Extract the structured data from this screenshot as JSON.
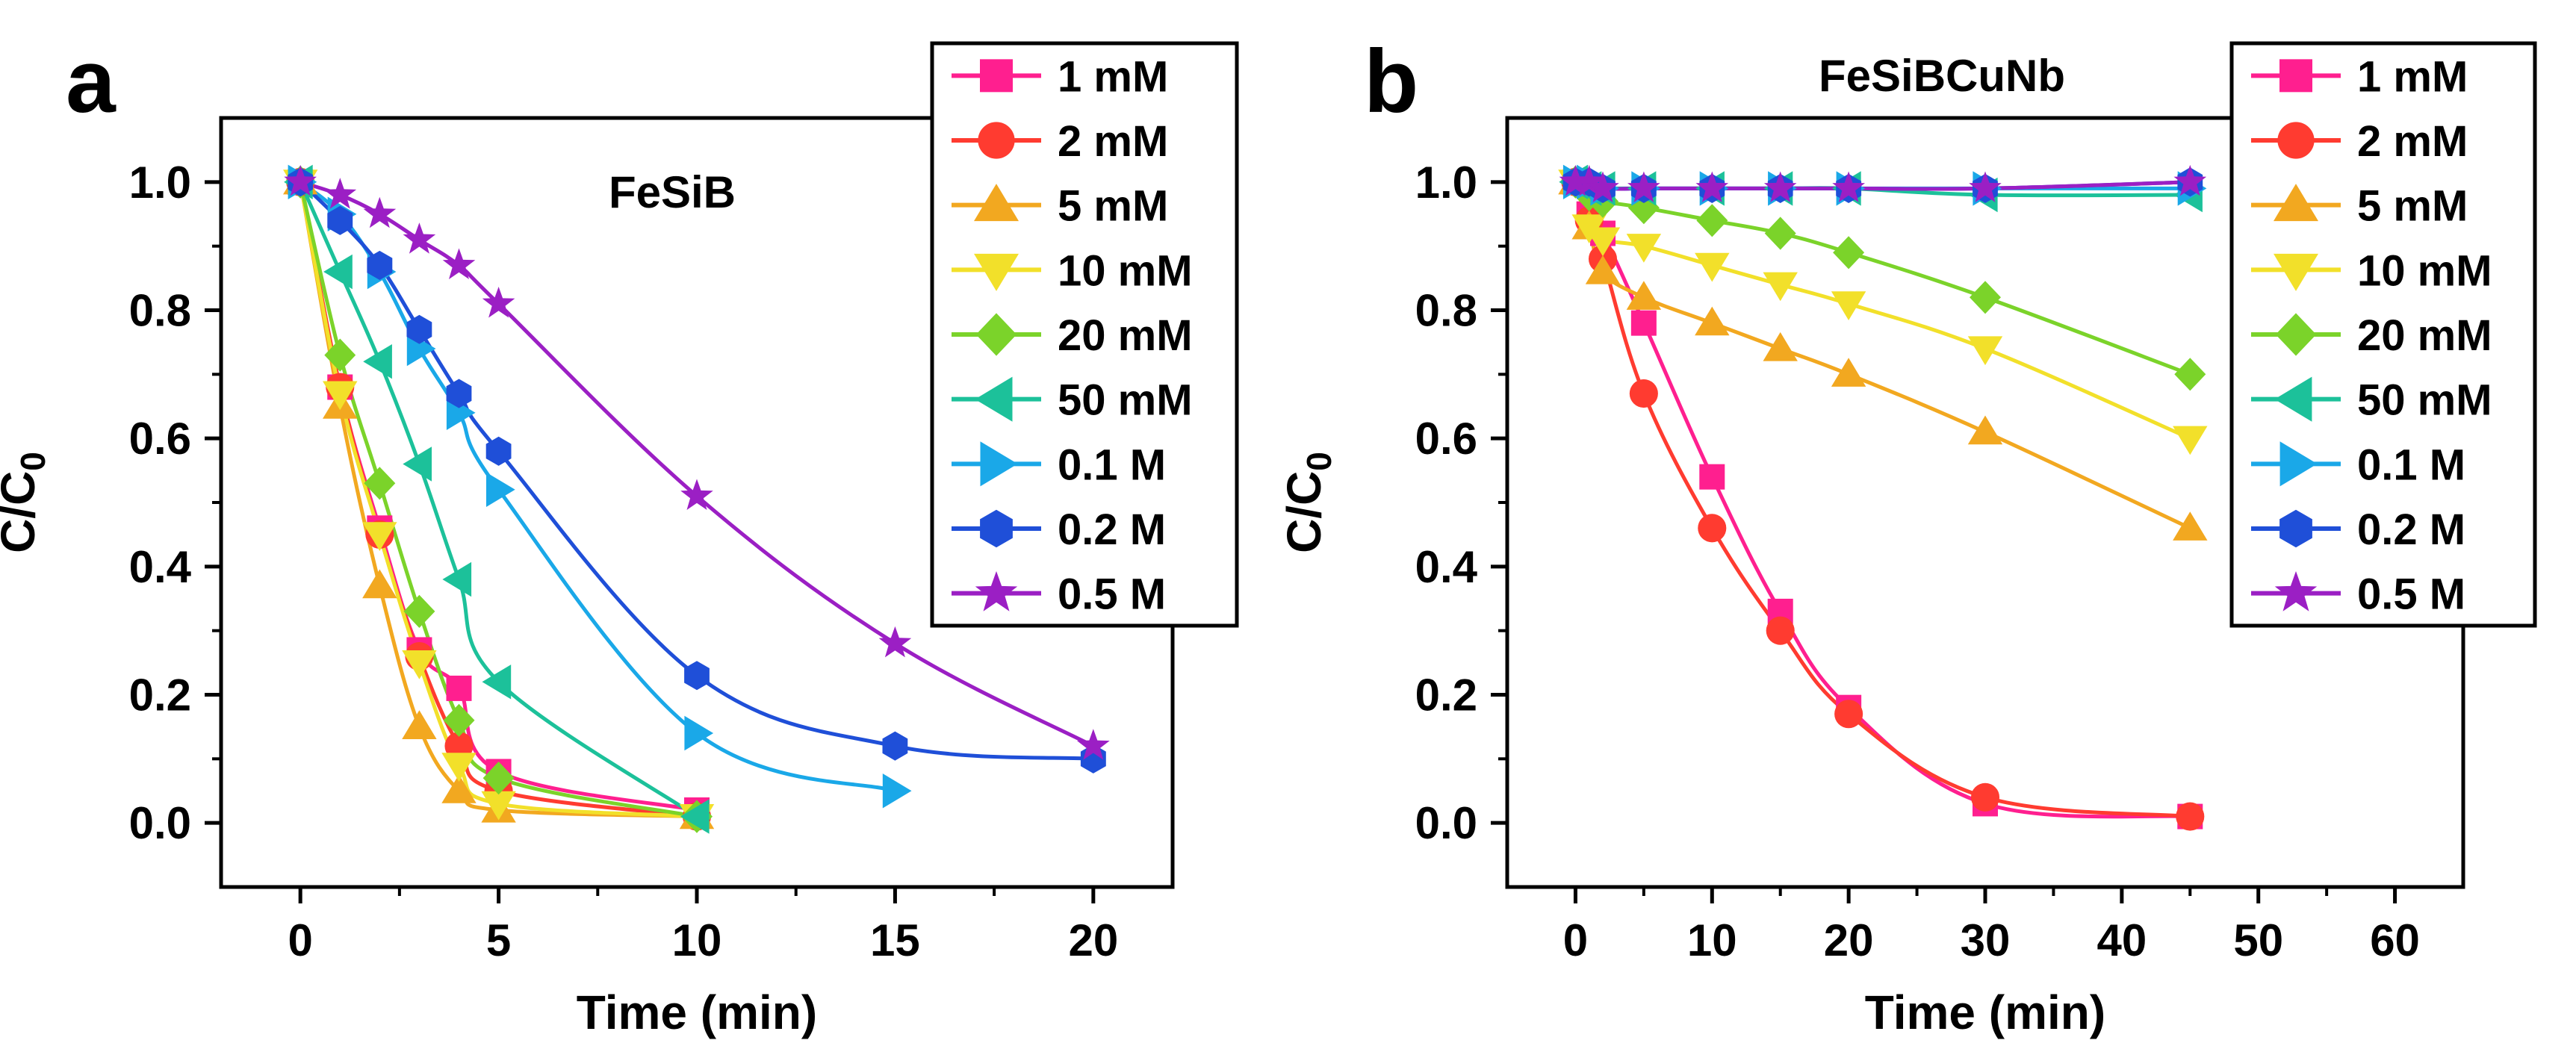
{
  "chart_data": [
    {
      "panel_label": "a",
      "title": "FeSiB",
      "type": "line",
      "xlabel": "Time (min)",
      "ylabel": "C/C",
      "ylabel_sub": "0",
      "xlim": [
        -2,
        22
      ],
      "ylim": [
        -0.1,
        1.1
      ],
      "xticks": [
        0,
        5,
        10,
        15,
        20
      ],
      "yticks": [
        0.0,
        0.2,
        0.4,
        0.6,
        0.8,
        1.0
      ],
      "xtick_labels": [
        "0",
        "5",
        "10",
        "15",
        "20"
      ],
      "ytick_labels": [
        "0.0",
        "0.2",
        "0.4",
        "0.6",
        "0.8",
        "1.0"
      ],
      "legend_position": "top-right",
      "series": [
        {
          "name": "1 mM",
          "color": "#ff1f8f",
          "marker": "square",
          "x": [
            0,
            1,
            2,
            3,
            4,
            5,
            10
          ],
          "y": [
            1.0,
            0.68,
            0.46,
            0.27,
            0.21,
            0.08,
            0.02
          ]
        },
        {
          "name": "2 mM",
          "color": "#ff3b30",
          "marker": "circle",
          "x": [
            0,
            1,
            2,
            3,
            4,
            5,
            10
          ],
          "y": [
            1.0,
            0.68,
            0.45,
            0.26,
            0.12,
            0.05,
            0.01
          ]
        },
        {
          "name": "5 mM",
          "color": "#f2a820",
          "marker": "triangle-up",
          "x": [
            0,
            1,
            2,
            3,
            4,
            5,
            10
          ],
          "y": [
            1.0,
            0.65,
            0.37,
            0.15,
            0.05,
            0.02,
            0.01
          ]
        },
        {
          "name": "10 mM",
          "color": "#f2e02a",
          "marker": "triangle-down",
          "x": [
            0,
            1,
            2,
            3,
            4,
            5,
            10
          ],
          "y": [
            1.0,
            0.67,
            0.45,
            0.25,
            0.09,
            0.03,
            0.01
          ]
        },
        {
          "name": "20 mM",
          "color": "#7bd32a",
          "marker": "diamond",
          "x": [
            0,
            1,
            2,
            3,
            4,
            5,
            10
          ],
          "y": [
            1.0,
            0.73,
            0.53,
            0.33,
            0.16,
            0.07,
            0.01
          ]
        },
        {
          "name": "50 mM",
          "color": "#1cc19a",
          "marker": "triangle-left",
          "x": [
            0,
            1,
            2,
            3,
            4,
            5,
            10
          ],
          "y": [
            1.0,
            0.86,
            0.72,
            0.56,
            0.38,
            0.22,
            0.01
          ]
        },
        {
          "name": "0.1 M",
          "color": "#1aa8e8",
          "marker": "triangle-right",
          "x": [
            0,
            1,
            2,
            3,
            4,
            5,
            10,
            15
          ],
          "y": [
            1.0,
            0.95,
            0.86,
            0.74,
            0.64,
            0.52,
            0.14,
            0.05
          ]
        },
        {
          "name": "0.2 M",
          "color": "#1f4fd8",
          "marker": "hexagon",
          "x": [
            0,
            1,
            2,
            3,
            4,
            5,
            10,
            15,
            20
          ],
          "y": [
            1.0,
            0.94,
            0.87,
            0.77,
            0.67,
            0.58,
            0.23,
            0.12,
            0.1
          ]
        },
        {
          "name": "0.5 M",
          "color": "#9b1fc4",
          "marker": "star",
          "x": [
            0,
            1,
            2,
            3,
            4,
            5,
            10,
            15,
            20
          ],
          "y": [
            1.0,
            0.98,
            0.95,
            0.91,
            0.87,
            0.81,
            0.51,
            0.28,
            0.12
          ]
        }
      ]
    },
    {
      "panel_label": "b",
      "title": "FeSiBCuNb",
      "type": "line",
      "xlabel": "Time (min)",
      "ylabel": "C/C",
      "ylabel_sub": "0",
      "xlim": [
        -5,
        65
      ],
      "ylim": [
        -0.1,
        1.1
      ],
      "xticks": [
        0,
        10,
        20,
        30,
        40,
        50,
        60
      ],
      "yticks": [
        0.0,
        0.2,
        0.4,
        0.6,
        0.8,
        1.0
      ],
      "xtick_labels": [
        "0",
        "10",
        "20",
        "30",
        "40",
        "50",
        "60"
      ],
      "ytick_labels": [
        "0.0",
        "0.2",
        "0.4",
        "0.6",
        "0.8",
        "1.0"
      ],
      "legend_position": "top-right",
      "series": [
        {
          "name": "1 mM",
          "color": "#ff1f8f",
          "marker": "square",
          "x": [
            0,
            1,
            2,
            5,
            10,
            15,
            20,
            30,
            45
          ],
          "y": [
            1.0,
            0.95,
            0.92,
            0.78,
            0.54,
            0.33,
            0.18,
            0.03,
            0.01
          ]
        },
        {
          "name": "2 mM",
          "color": "#ff3b30",
          "marker": "circle",
          "x": [
            0,
            1,
            2,
            5,
            10,
            15,
            20,
            30,
            45
          ],
          "y": [
            1.0,
            0.94,
            0.88,
            0.67,
            0.46,
            0.3,
            0.17,
            0.04,
            0.01
          ]
        },
        {
          "name": "5 mM",
          "color": "#f2a820",
          "marker": "triangle-up",
          "x": [
            0,
            1,
            2,
            5,
            10,
            15,
            20,
            30,
            45
          ],
          "y": [
            1.0,
            0.93,
            0.86,
            0.82,
            0.78,
            0.74,
            0.7,
            0.61,
            0.46
          ]
        },
        {
          "name": "10 mM",
          "color": "#f2e02a",
          "marker": "triangle-down",
          "x": [
            0,
            1,
            2,
            5,
            10,
            15,
            20,
            30,
            45
          ],
          "y": [
            1.0,
            0.93,
            0.91,
            0.9,
            0.87,
            0.84,
            0.81,
            0.74,
            0.6
          ]
        },
        {
          "name": "20 mM",
          "color": "#7bd32a",
          "marker": "diamond",
          "x": [
            0,
            1,
            2,
            5,
            10,
            15,
            20,
            30,
            45
          ],
          "y": [
            1.0,
            0.98,
            0.97,
            0.96,
            0.94,
            0.92,
            0.89,
            0.82,
            0.7
          ]
        },
        {
          "name": "50 mM",
          "color": "#1cc19a",
          "marker": "triangle-left",
          "x": [
            0,
            1,
            2,
            5,
            10,
            15,
            20,
            30,
            45
          ],
          "y": [
            1.0,
            0.99,
            0.99,
            0.99,
            0.99,
            0.99,
            0.99,
            0.98,
            0.98
          ]
        },
        {
          "name": "0.1 M",
          "color": "#1aa8e8",
          "marker": "triangle-right",
          "x": [
            0,
            1,
            2,
            5,
            10,
            15,
            20,
            30,
            45
          ],
          "y": [
            1.0,
            1.0,
            0.99,
            0.99,
            0.99,
            0.99,
            0.99,
            0.99,
            0.99
          ]
        },
        {
          "name": "0.2 M",
          "color": "#1f4fd8",
          "marker": "hexagon",
          "x": [
            0,
            1,
            2,
            5,
            10,
            15,
            20,
            30,
            45
          ],
          "y": [
            1.0,
            1.0,
            0.99,
            0.99,
            0.99,
            0.99,
            0.99,
            0.99,
            1.0
          ]
        },
        {
          "name": "0.5 M",
          "color": "#9b1fc4",
          "marker": "star",
          "x": [
            0,
            1,
            2,
            5,
            10,
            15,
            20,
            30,
            45
          ],
          "y": [
            1.0,
            1.0,
            0.99,
            0.99,
            0.99,
            0.99,
            0.99,
            0.99,
            1.0
          ]
        }
      ]
    }
  ]
}
